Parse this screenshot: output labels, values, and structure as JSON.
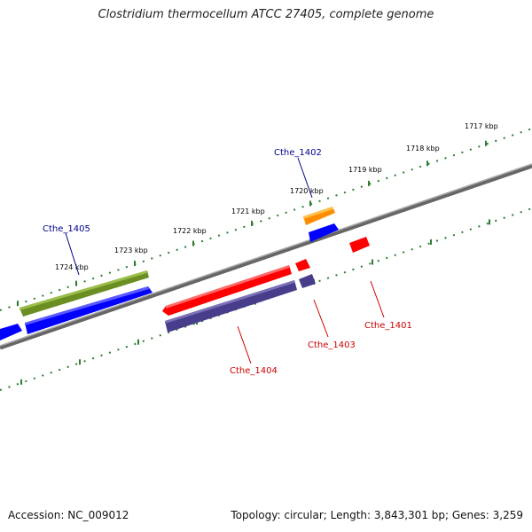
{
  "title": "Clostridium thermocellum ATCC 27405, complete genome",
  "footer": {
    "accession": "Accession: NC_009012",
    "summary": "Topology: circular; Length: 3,843,301 bp; Genes: 3,259"
  },
  "ruler_labels": [
    "1717 kbp",
    "1718 kbp",
    "1719 kbp",
    "1720 kbp",
    "1721 kbp",
    "1722 kbp",
    "1723 kbp",
    "1724 kbp"
  ],
  "genes": [
    {
      "name": "Cthe_1402",
      "strand": "+",
      "color": "#ff8c00"
    },
    {
      "name": "Cthe_1405",
      "strand": "+",
      "color": "#6b8e23"
    },
    {
      "name": "Cthe_1401",
      "strand": "-",
      "color": "#ff0000"
    },
    {
      "name": "Cthe_1403",
      "strand": "-",
      "color": "#ff0000"
    },
    {
      "name": "Cthe_1404",
      "strand": "-",
      "color": "#ff0000"
    }
  ],
  "colors": {
    "plus_label": "#00008b",
    "minus_label": "#cc0000",
    "cds_plus": "#0000ff",
    "cds_minus": "#483d8b",
    "tick": "#2e7d32",
    "backbone": "#888888"
  }
}
